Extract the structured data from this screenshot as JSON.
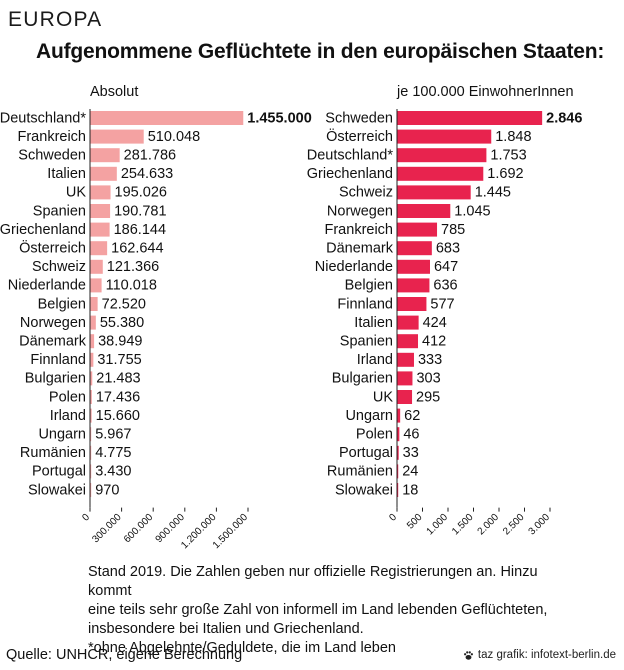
{
  "header": {
    "kicker": "EUROPA",
    "headline": "Aufgenommene Geflüchtete in den europäischen Staaten:"
  },
  "chart_data": [
    {
      "type": "bar",
      "orientation": "horizontal",
      "title": "Absolut",
      "categories": [
        "Deutschland*",
        "Frankreich",
        "Schweden",
        "Italien",
        "UK",
        "Spanien",
        "Griechenland",
        "Österreich",
        "Schweiz",
        "Niederlande",
        "Belgien",
        "Norwegen",
        "Dänemark",
        "Finnland",
        "Bulgarien",
        "Polen",
        "Irland",
        "Ungarn",
        "Rumänien",
        "Portugal",
        "Slowakei"
      ],
      "values": [
        1455000,
        510048,
        281786,
        254633,
        195026,
        190781,
        186144,
        162644,
        121366,
        110018,
        72520,
        55380,
        38949,
        31755,
        21483,
        17436,
        15660,
        5967,
        4775,
        3430,
        970
      ],
      "value_labels": [
        "1.455.000",
        "510.048",
        "281.786",
        "254.633",
        "195.026",
        "190.781",
        "186.144",
        "162.644",
        "121.366",
        "110.018",
        "72.520",
        "55.380",
        "38.949",
        "31.755",
        "21.483",
        "17.436",
        "15.660",
        "5.967",
        "4.775",
        "3.430",
        "970"
      ],
      "xlim": [
        0,
        1500000
      ],
      "ticks": [
        0,
        300000,
        600000,
        900000,
        1200000,
        1500000
      ],
      "tick_labels": [
        "0",
        "300.000",
        "600.000",
        "900.000",
        "1.200.000",
        "1.500.000"
      ],
      "bar_color": "#f4a2a2",
      "grid": false
    },
    {
      "type": "bar",
      "orientation": "horizontal",
      "title": "je 100.000 EinwohnerInnen",
      "categories": [
        "Schweden",
        "Österreich",
        "Deutschland*",
        "Griechenland",
        "Schweiz",
        "Norwegen",
        "Frankreich",
        "Dänemark",
        "Niederlande",
        "Belgien",
        "Finnland",
        "Italien",
        "Spanien",
        "Irland",
        "Bulgarien",
        "UK",
        "Ungarn",
        "Polen",
        "Portugal",
        "Rumänien",
        "Slowakei"
      ],
      "values": [
        2846,
        1848,
        1753,
        1692,
        1445,
        1045,
        785,
        683,
        647,
        636,
        577,
        424,
        412,
        333,
        303,
        295,
        62,
        46,
        33,
        24,
        18
      ],
      "value_labels": [
        "2.846",
        "1.848",
        "1.753",
        "1.692",
        "1.445",
        "1.045",
        "785",
        "683",
        "647",
        "636",
        "577",
        "424",
        "412",
        "333",
        "303",
        "295",
        "62",
        "46",
        "33",
        "24",
        "18"
      ],
      "xlim": [
        0,
        3000
      ],
      "ticks": [
        0,
        500,
        1000,
        1500,
        2000,
        2500,
        3000
      ],
      "tick_labels": [
        "0",
        "500",
        "1.000",
        "1.500",
        "2.000",
        "2.500",
        "3.000"
      ],
      "bar_color": "#e8234e",
      "grid": false
    }
  ],
  "notes": {
    "line1": "Stand 2019. Die Zahlen geben nur offizielle Registrierungen an. Hinzu kommt",
    "line2": "eine teils sehr große  Zahl von informell im Land lebenden Geflüchteten,",
    "line3": "insbesondere bei Italien und Griechenland.",
    "line4": "*ohne Abgelehnte/Geduldete, die im Land leben"
  },
  "footer": {
    "source": "Quelle: UNHCR, eigene Berechnung",
    "credit": "taz grafik: infotext-berlin.de",
    "credit_icon": "taz-paw-icon"
  }
}
